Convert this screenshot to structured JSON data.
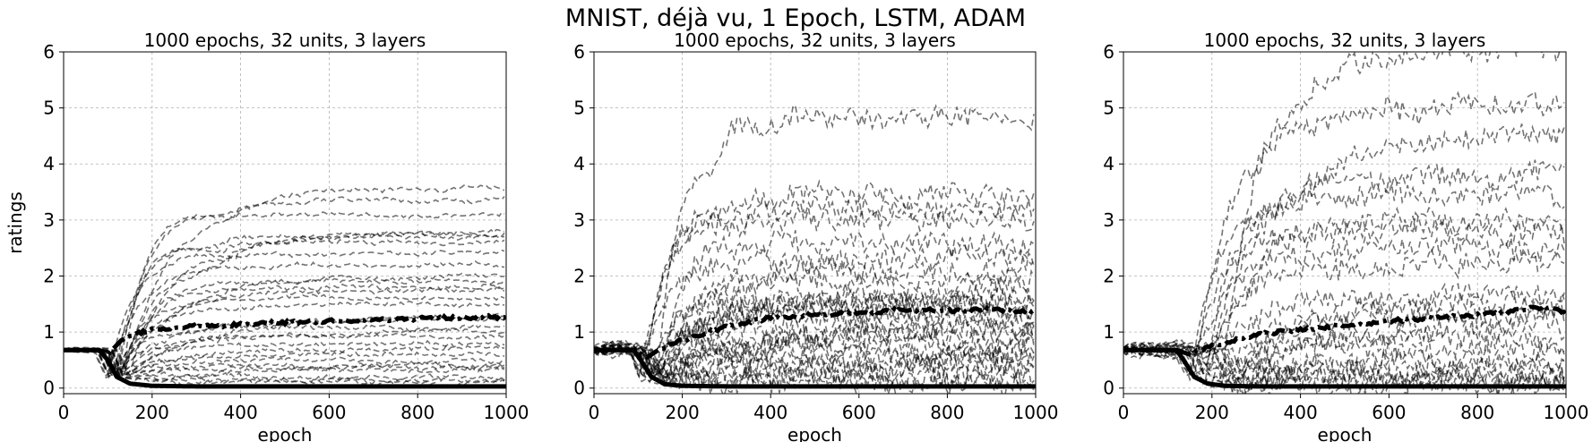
{
  "figure": {
    "suptitle": "MNIST, déjà vu, 1 Epoch, LSTM, ADAM"
  },
  "chart_data": [
    {
      "type": "line",
      "title": "1000 epochs, 32 units, 3 layers",
      "xlabel": "epoch",
      "ylabel": "ratings",
      "xlim": [
        0,
        1000
      ],
      "ylim": [
        -0.1,
        6
      ],
      "xticks": [
        "0",
        "200",
        "400",
        "600",
        "800",
        "1000"
      ],
      "yticks": [
        "0",
        "1",
        "2",
        "3",
        "4",
        "5",
        "6"
      ],
      "grid": true,
      "series_style": "many thin dashed gray traces, thick black dash-dot mean, thick black solid floor",
      "dashed_series_final_values": [
        3.6,
        3.35,
        3.1,
        2.8,
        2.75,
        2.7,
        2.6,
        2.4,
        2.2,
        2.0,
        1.9,
        1.8,
        1.75,
        1.6,
        1.5,
        1.3,
        1.2,
        1.1,
        1.0,
        0.9,
        0.8,
        0.7,
        0.6,
        0.5,
        0.4,
        0.35,
        0.3,
        0.2,
        0.15,
        0.1
      ],
      "mean_series": {
        "x": [
          0,
          80,
          100,
          130,
          160,
          200,
          300,
          400,
          500,
          600,
          700,
          800,
          900,
          1000
        ],
        "y": [
          0.68,
          0.68,
          0.6,
          0.85,
          0.97,
          1.05,
          1.1,
          1.13,
          1.17,
          1.2,
          1.22,
          1.24,
          1.26,
          1.27
        ]
      },
      "floor_series": {
        "x": [
          0,
          80,
          100,
          120,
          150,
          200,
          300,
          1000
        ],
        "y": [
          0.68,
          0.68,
          0.5,
          0.2,
          0.08,
          0.04,
          0.03,
          0.03
        ]
      }
    },
    {
      "type": "line",
      "title": "1000 epochs, 32 units, 3 layers",
      "xlabel": "epoch",
      "ylabel": "",
      "xlim": [
        0,
        1000
      ],
      "ylim": [
        -0.1,
        6
      ],
      "xticks": [
        "0",
        "200",
        "400",
        "600",
        "800",
        "1000"
      ],
      "yticks": [
        "0",
        "1",
        "2",
        "3",
        "4",
        "5",
        "6"
      ],
      "grid": true,
      "series_style": "many thin dashed gray traces, thick black dash-dot mean, thick black solid floor",
      "dashed_series_final_values": [
        4.8,
        3.45,
        3.2,
        3.0,
        2.6,
        2.3,
        2.1,
        1.9,
        1.7,
        1.6,
        1.55,
        1.5,
        1.4,
        1.3,
        1.2,
        1.1,
        1.0,
        0.9,
        0.8,
        0.7,
        0.6,
        0.5,
        0.4,
        0.3,
        0.2,
        0.15,
        0.1
      ],
      "mean_series": {
        "x": [
          0,
          90,
          120,
          150,
          200,
          300,
          400,
          500,
          600,
          700,
          800,
          900,
          1000
        ],
        "y": [
          0.68,
          0.68,
          0.55,
          0.7,
          0.85,
          1.1,
          1.25,
          1.3,
          1.35,
          1.4,
          1.38,
          1.4,
          1.37
        ]
      },
      "floor_series": {
        "x": [
          0,
          90,
          110,
          130,
          160,
          200,
          300,
          1000
        ],
        "y": [
          0.68,
          0.68,
          0.45,
          0.2,
          0.07,
          0.04,
          0.03,
          0.03
        ]
      }
    },
    {
      "type": "line",
      "title": "1000 epochs, 32 units, 3 layers",
      "xlabel": "epoch",
      "ylabel": "",
      "xlim": [
        0,
        1000
      ],
      "ylim": [
        -0.1,
        6
      ],
      "xticks": [
        "0",
        "200",
        "400",
        "600",
        "800",
        "1000"
      ],
      "yticks": [
        "0",
        "1",
        "2",
        "3",
        "4",
        "5",
        "6"
      ],
      "grid": true,
      "series_style": "many thin dashed gray traces, thick black dash-dot mean, thick black solid floor",
      "dashed_series_final_values": [
        6.0,
        5.0,
        4.6,
        3.8,
        3.5,
        3.0,
        2.8,
        2.5,
        2.2,
        1.6,
        1.5,
        1.3,
        1.1,
        0.9,
        0.7,
        0.5,
        0.4,
        0.3,
        0.2,
        0.15,
        0.1,
        0.05
      ],
      "mean_series": {
        "x": [
          0,
          120,
          150,
          200,
          300,
          400,
          500,
          600,
          700,
          800,
          900,
          950,
          1000
        ],
        "y": [
          0.68,
          0.68,
          0.6,
          0.75,
          0.95,
          1.05,
          1.12,
          1.2,
          1.25,
          1.3,
          1.4,
          1.45,
          1.35
        ]
      },
      "floor_series": {
        "x": [
          0,
          120,
          140,
          160,
          190,
          230,
          300,
          1000
        ],
        "y": [
          0.68,
          0.68,
          0.45,
          0.2,
          0.08,
          0.04,
          0.03,
          0.03
        ]
      }
    }
  ]
}
